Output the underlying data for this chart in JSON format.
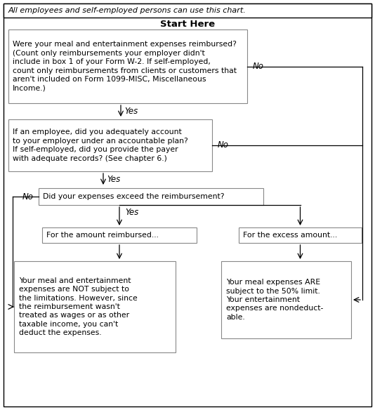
{
  "title_text": "All employees and self-employed persons can use this chart.",
  "start_label": "Start Here",
  "box1_text": "Were your meal and entertainment expenses reimbursed?\n(Count only reimbursements your employer didn't\ninclude in box 1 of your Form W-2. If self-employed,\ncount only reimbursements from clients or customers that\naren't included on Form 1099-MISC, Miscellaneous\nIncome.)",
  "box2_text": "If an employee, did you adequately account\nto your employer under an accountable plan?\nIf self-employed, did you provide the payer\nwith adequate records? (See chapter 6.)",
  "box3_text": "Did your expenses exceed the reimbursement?",
  "box4_text": "For the amount reimbursed...",
  "box5_text": "For the excess amount...",
  "box6_text": "Your meal and entertainment\nexpenses are NOT subject to\nthe limitations. However, since\nthe reimbursement wasn't\ntreated as wages or as other\ntaxable income, you can't\ndeduct the expenses.",
  "box7_text": "Your meal expenses ARE\nsubject to the 50% limit.\nYour entertainment\nexpenses are nondeduct-\nable.",
  "bg_color": "#ffffff",
  "box_edge_color": "#888888",
  "outer_border_color": "#000000",
  "text_color": "#000000",
  "arrow_color": "#000000",
  "font_size_small": 7.8,
  "font_size_title": 8.0,
  "font_size_start": 9.5,
  "font_size_label": 8.5
}
